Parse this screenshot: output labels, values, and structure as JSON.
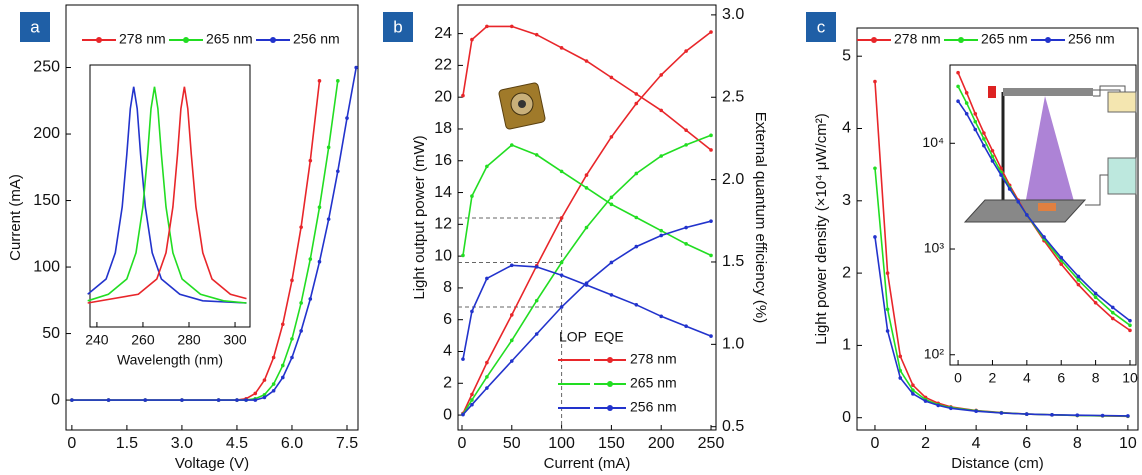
{
  "chart_data": [
    {
      "type": "line",
      "label": "a",
      "x_label": "Voltage (V)",
      "y_label": "Current (mA)",
      "x": [
        0,
        1,
        2,
        3,
        4,
        4.5,
        4.75,
        5,
        5.25,
        5.5,
        5.75,
        6,
        6.25,
        6.5,
        6.75,
        7,
        7.25,
        7.5,
        7.75
      ],
      "series": [
        {
          "name": "278 nm",
          "color": "#e8262a",
          "values": [
            0,
            0,
            0,
            0,
            0,
            0,
            1,
            5,
            15,
            32,
            57,
            90,
            130,
            180,
            240,
            null,
            null,
            null,
            null
          ]
        },
        {
          "name": "265 nm",
          "color": "#22dd22",
          "values": [
            0,
            0,
            0,
            0,
            0,
            0,
            0,
            1,
            4,
            12,
            26,
            46,
            73,
            106,
            145,
            190,
            240,
            null,
            null
          ]
        },
        {
          "name": "256 nm",
          "color": "#2233cc",
          "values": [
            0,
            0,
            0,
            0,
            0,
            0,
            0,
            0,
            2,
            7,
            17,
            32,
            52,
            76,
            104,
            136,
            172,
            212,
            250
          ]
        }
      ],
      "xlim": [
        -0.16,
        7.8
      ],
      "xticks": [
        0,
        1.5,
        {
          "value": 3,
          "label": "3.0"
        },
        4.5,
        {
          "value": 6,
          "label": "6.0"
        },
        7.5
      ],
      "ylim": [
        -22.5,
        297
      ],
      "yticks": [
        0,
        50,
        100,
        150,
        200,
        250
      ],
      "legend": "top"
    },
    {
      "type": "line",
      "x_label": "Wavelength (nm)",
      "series": [
        {
          "color": "#2233cc",
          "x": [
            236,
            244,
            248,
            251,
            253,
            254.5,
            256,
            257.5,
            259,
            261,
            264,
            268,
            276,
            286,
            305
          ],
          "values": [
            0.05,
            0.12,
            0.24,
            0.45,
            0.69,
            0.9,
            1,
            0.9,
            0.69,
            0.45,
            0.24,
            0.12,
            0.05,
            0.02,
            0.01
          ]
        },
        {
          "color": "#22dd22",
          "x": [
            236,
            245,
            253,
            257,
            260,
            262,
            263.5,
            265,
            266.5,
            268,
            270,
            273,
            277,
            285,
            295,
            305
          ],
          "values": [
            0.02,
            0.05,
            0.12,
            0.24,
            0.45,
            0.69,
            0.9,
            1,
            0.9,
            0.69,
            0.45,
            0.24,
            0.12,
            0.05,
            0.02,
            0.01
          ]
        },
        {
          "color": "#e8262a",
          "x": [
            236,
            258,
            266,
            270,
            273,
            275,
            276.5,
            278,
            279.5,
            281,
            283,
            286,
            290,
            298,
            305
          ],
          "values": [
            0.01,
            0.05,
            0.12,
            0.24,
            0.45,
            0.69,
            0.9,
            1,
            0.9,
            0.69,
            0.45,
            0.24,
            0.12,
            0.05,
            0.03
          ]
        }
      ],
      "xlim": [
        237,
        306.5
      ],
      "xticks": [
        240,
        260,
        280,
        300
      ],
      "ylim": [
        -0.1,
        1.1
      ]
    },
    {
      "type": "line",
      "label": "b",
      "x_label": "Current (mA)",
      "y_label": "Light output power (mW)",
      "y2_label": "External quantum efficiency (%)",
      "x": [
        1,
        10,
        25,
        50,
        75,
        100,
        125,
        150,
        175,
        200,
        225,
        250
      ],
      "series": [
        {
          "name": "278 nm",
          "color": "#e8262a",
          "values": [
            0.1,
            1.3,
            3.3,
            6.3,
            9.4,
            12.4,
            15.1,
            17.5,
            19.6,
            21.4,
            22.9,
            24.1
          ],
          "y2_values": [
            2.51,
            2.85,
            2.93,
            2.93,
            2.88,
            2.8,
            2.72,
            2.62,
            2.52,
            2.42,
            2.3,
            2.18
          ]
        },
        {
          "name": "265 nm",
          "color": "#22dd22",
          "values": [
            0.05,
            0.95,
            2.4,
            4.7,
            7.2,
            9.6,
            11.8,
            13.7,
            15.2,
            16.3,
            17.0,
            17.6
          ],
          "y2_values": [
            1.54,
            1.9,
            2.08,
            2.21,
            2.15,
            2.05,
            1.95,
            1.85,
            1.77,
            1.69,
            1.61,
            1.54
          ]
        },
        {
          "name": "256 nm",
          "color": "#2233cc",
          "values": [
            0.03,
            0.65,
            1.7,
            3.4,
            5.1,
            6.8,
            8.3,
            9.6,
            10.6,
            11.3,
            11.8,
            12.2
          ],
          "y2_values": [
            0.91,
            1.2,
            1.4,
            1.48,
            1.47,
            1.42,
            1.36,
            1.3,
            1.24,
            1.17,
            1.11,
            1.05
          ]
        }
      ],
      "xlim": [
        -4,
        255
      ],
      "xticks": [
        0,
        50,
        100,
        150,
        200,
        250
      ],
      "ylim": [
        -0.94,
        25.8
      ],
      "yticks": [
        0,
        2,
        4,
        6,
        8,
        10,
        12,
        14,
        16,
        18,
        20,
        22,
        24
      ],
      "y2lim": [
        0.48,
        3.06
      ],
      "y2ticks": [
        0.5,
        {
          "value": 1,
          "label": "1.0"
        },
        1.5,
        {
          "value": 2,
          "label": "2.0"
        },
        2.5,
        {
          "value": 3,
          "label": "3.0"
        }
      ],
      "legend_columns": [
        "LOP",
        "EQE"
      ]
    },
    {
      "type": "line",
      "label": "c",
      "x_label": "Distance (cm)",
      "y_label": "Light power density (×10⁴ μW/cm²)",
      "x": [
        0,
        0.5,
        1,
        1.5,
        2,
        2.5,
        3,
        4,
        5,
        6,
        7,
        8,
        9,
        10
      ],
      "series": [
        {
          "name": "278 nm",
          "color": "#e8262a",
          "values": [
            4.65,
            2.0,
            0.85,
            0.45,
            0.28,
            0.2,
            0.15,
            0.1,
            0.07,
            0.05,
            0.04,
            0.03,
            0.025,
            0.02
          ]
        },
        {
          "name": "265 nm",
          "color": "#22dd22",
          "values": [
            3.45,
            1.5,
            0.65,
            0.38,
            0.25,
            0.18,
            0.14,
            0.095,
            0.068,
            0.05,
            0.04,
            0.032,
            0.027,
            0.022
          ]
        },
        {
          "name": "256 nm",
          "color": "#2233cc",
          "values": [
            2.5,
            1.2,
            0.55,
            0.33,
            0.23,
            0.17,
            0.13,
            0.09,
            0.065,
            0.05,
            0.04,
            0.035,
            0.03,
            0.025
          ]
        }
      ],
      "xlim": [
        -0.71,
        10.4
      ],
      "xticks": [
        0,
        2,
        4,
        6,
        8,
        10
      ],
      "ylim": [
        -0.17,
        5.39
      ],
      "yticks": [
        0,
        1,
        2,
        3,
        4,
        5
      ],
      "legend": "top"
    },
    {
      "type": "line",
      "log_y": true,
      "x": [
        0,
        0.5,
        1,
        1.5,
        2,
        2.5,
        3,
        3.5,
        4,
        5,
        6,
        7,
        8,
        9,
        10
      ],
      "series": [
        {
          "color": "#e8262a",
          "values": [
            46500,
            30000,
            19000,
            12500,
            8500,
            5800,
            4000,
            2900,
            2100,
            1200,
            720,
            460,
            310,
            220,
            170
          ]
        },
        {
          "color": "#22dd22",
          "values": [
            34500,
            24000,
            16000,
            11000,
            7500,
            5300,
            3800,
            2800,
            2100,
            1250,
            780,
            510,
            350,
            250,
            190
          ]
        },
        {
          "color": "#2233cc",
          "values": [
            25000,
            19000,
            13500,
            9500,
            6800,
            5000,
            3700,
            2800,
            2100,
            1300,
            830,
            550,
            380,
            280,
            210
          ]
        }
      ],
      "xlim": [
        -0.47,
        10.35
      ],
      "xticks": [
        0,
        2,
        4,
        6,
        8,
        10
      ],
      "ylim": [
        80,
        55000
      ],
      "yticks": [
        {
          "value": 100,
          "label": "10²"
        },
        {
          "value": 1000,
          "label": "10³"
        },
        {
          "value": 10000,
          "label": "10⁴"
        }
      ]
    }
  ]
}
